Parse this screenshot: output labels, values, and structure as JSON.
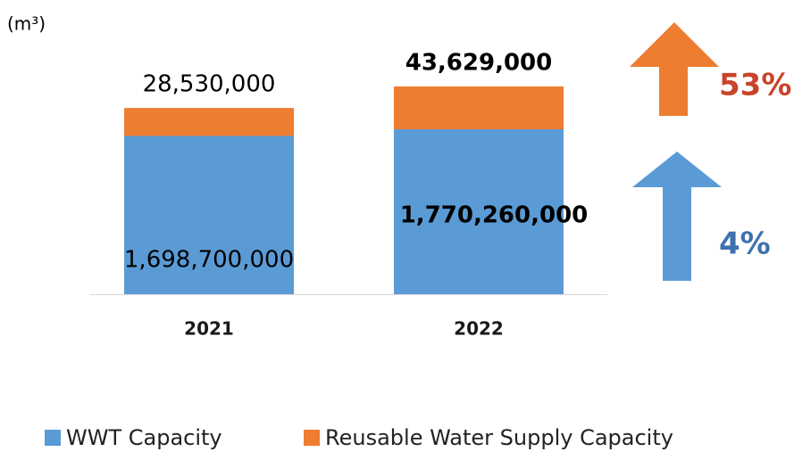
{
  "chart_data": {
    "type": "stacked_bar",
    "unit": "(m³)",
    "categories": [
      "2021",
      "2022"
    ],
    "series": [
      {
        "name": "WWT Capacity",
        "color": "#5b9bd5",
        "values": [
          1698700000,
          1770260000
        ],
        "value_labels": [
          "1,698,700,000",
          "1,770,260,000"
        ]
      },
      {
        "name": "Reusable Water Supply Capacity",
        "color": "#ed7d31",
        "values": [
          28530000,
          43629000
        ],
        "value_labels": [
          "28,530,000",
          "43,629,000"
        ]
      }
    ],
    "annotations": [
      {
        "text": "53%",
        "color": "#c9432a"
      },
      {
        "text": "4%",
        "color": "#3d72ad"
      }
    ]
  }
}
